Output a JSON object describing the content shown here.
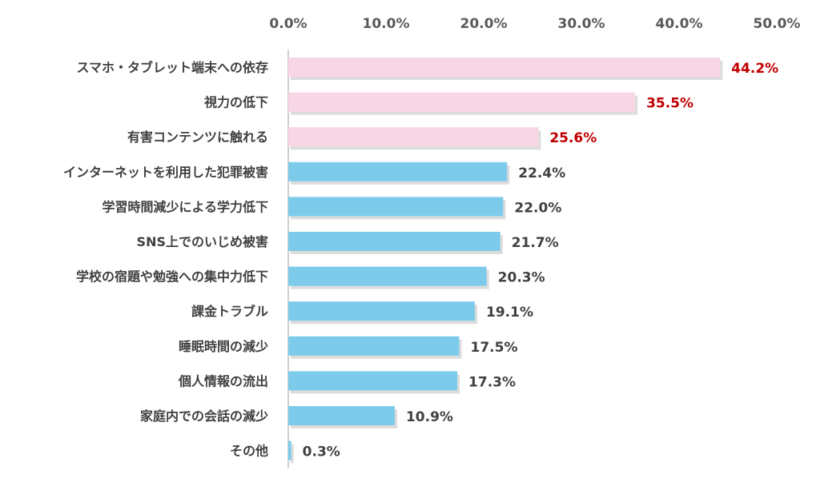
{
  "chart_data": {
    "type": "bar",
    "orientation": "horizontal",
    "xlim": [
      0,
      50
    ],
    "x_ticks": [
      "0.0%",
      "10.0%",
      "20.0%",
      "30.0%",
      "40.0%",
      "50.0%"
    ],
    "x_tick_values": [
      0,
      10,
      20,
      30,
      40,
      50
    ],
    "tick_position": "top",
    "grid": false,
    "categories": [
      "スマホ・タブレット端末への依存",
      "視力の低下",
      "有害コンテンツに触れる",
      "インターネットを利用した犯罪被害",
      "学習時間減少による学力低下",
      "SNS上でのいじめ被害",
      "学校の宿題や勉強への集中力低下",
      "課金トラブル",
      "睡眠時間の減少",
      "個人情報の流出",
      "家庭内での会話の減少",
      "その他"
    ],
    "values": [
      44.2,
      35.5,
      25.6,
      22.4,
      22.0,
      21.7,
      20.3,
      19.1,
      17.5,
      17.3,
      10.9,
      0.3
    ],
    "value_labels": [
      "44.2%",
      "35.5%",
      "25.6%",
      "22.4%",
      "22.0%",
      "21.7%",
      "20.3%",
      "19.1%",
      "17.5%",
      "17.3%",
      "10.9%",
      "0.3%"
    ],
    "highlight_top_n": 3,
    "colors": {
      "highlight_bar": "#f9d6e6",
      "normal_bar": "#7dcbeb",
      "highlight_label": "#c00000",
      "normal_label": "#404040",
      "axis_line": "#bfbfbf",
      "shadow": "#bfbfbf"
    }
  }
}
